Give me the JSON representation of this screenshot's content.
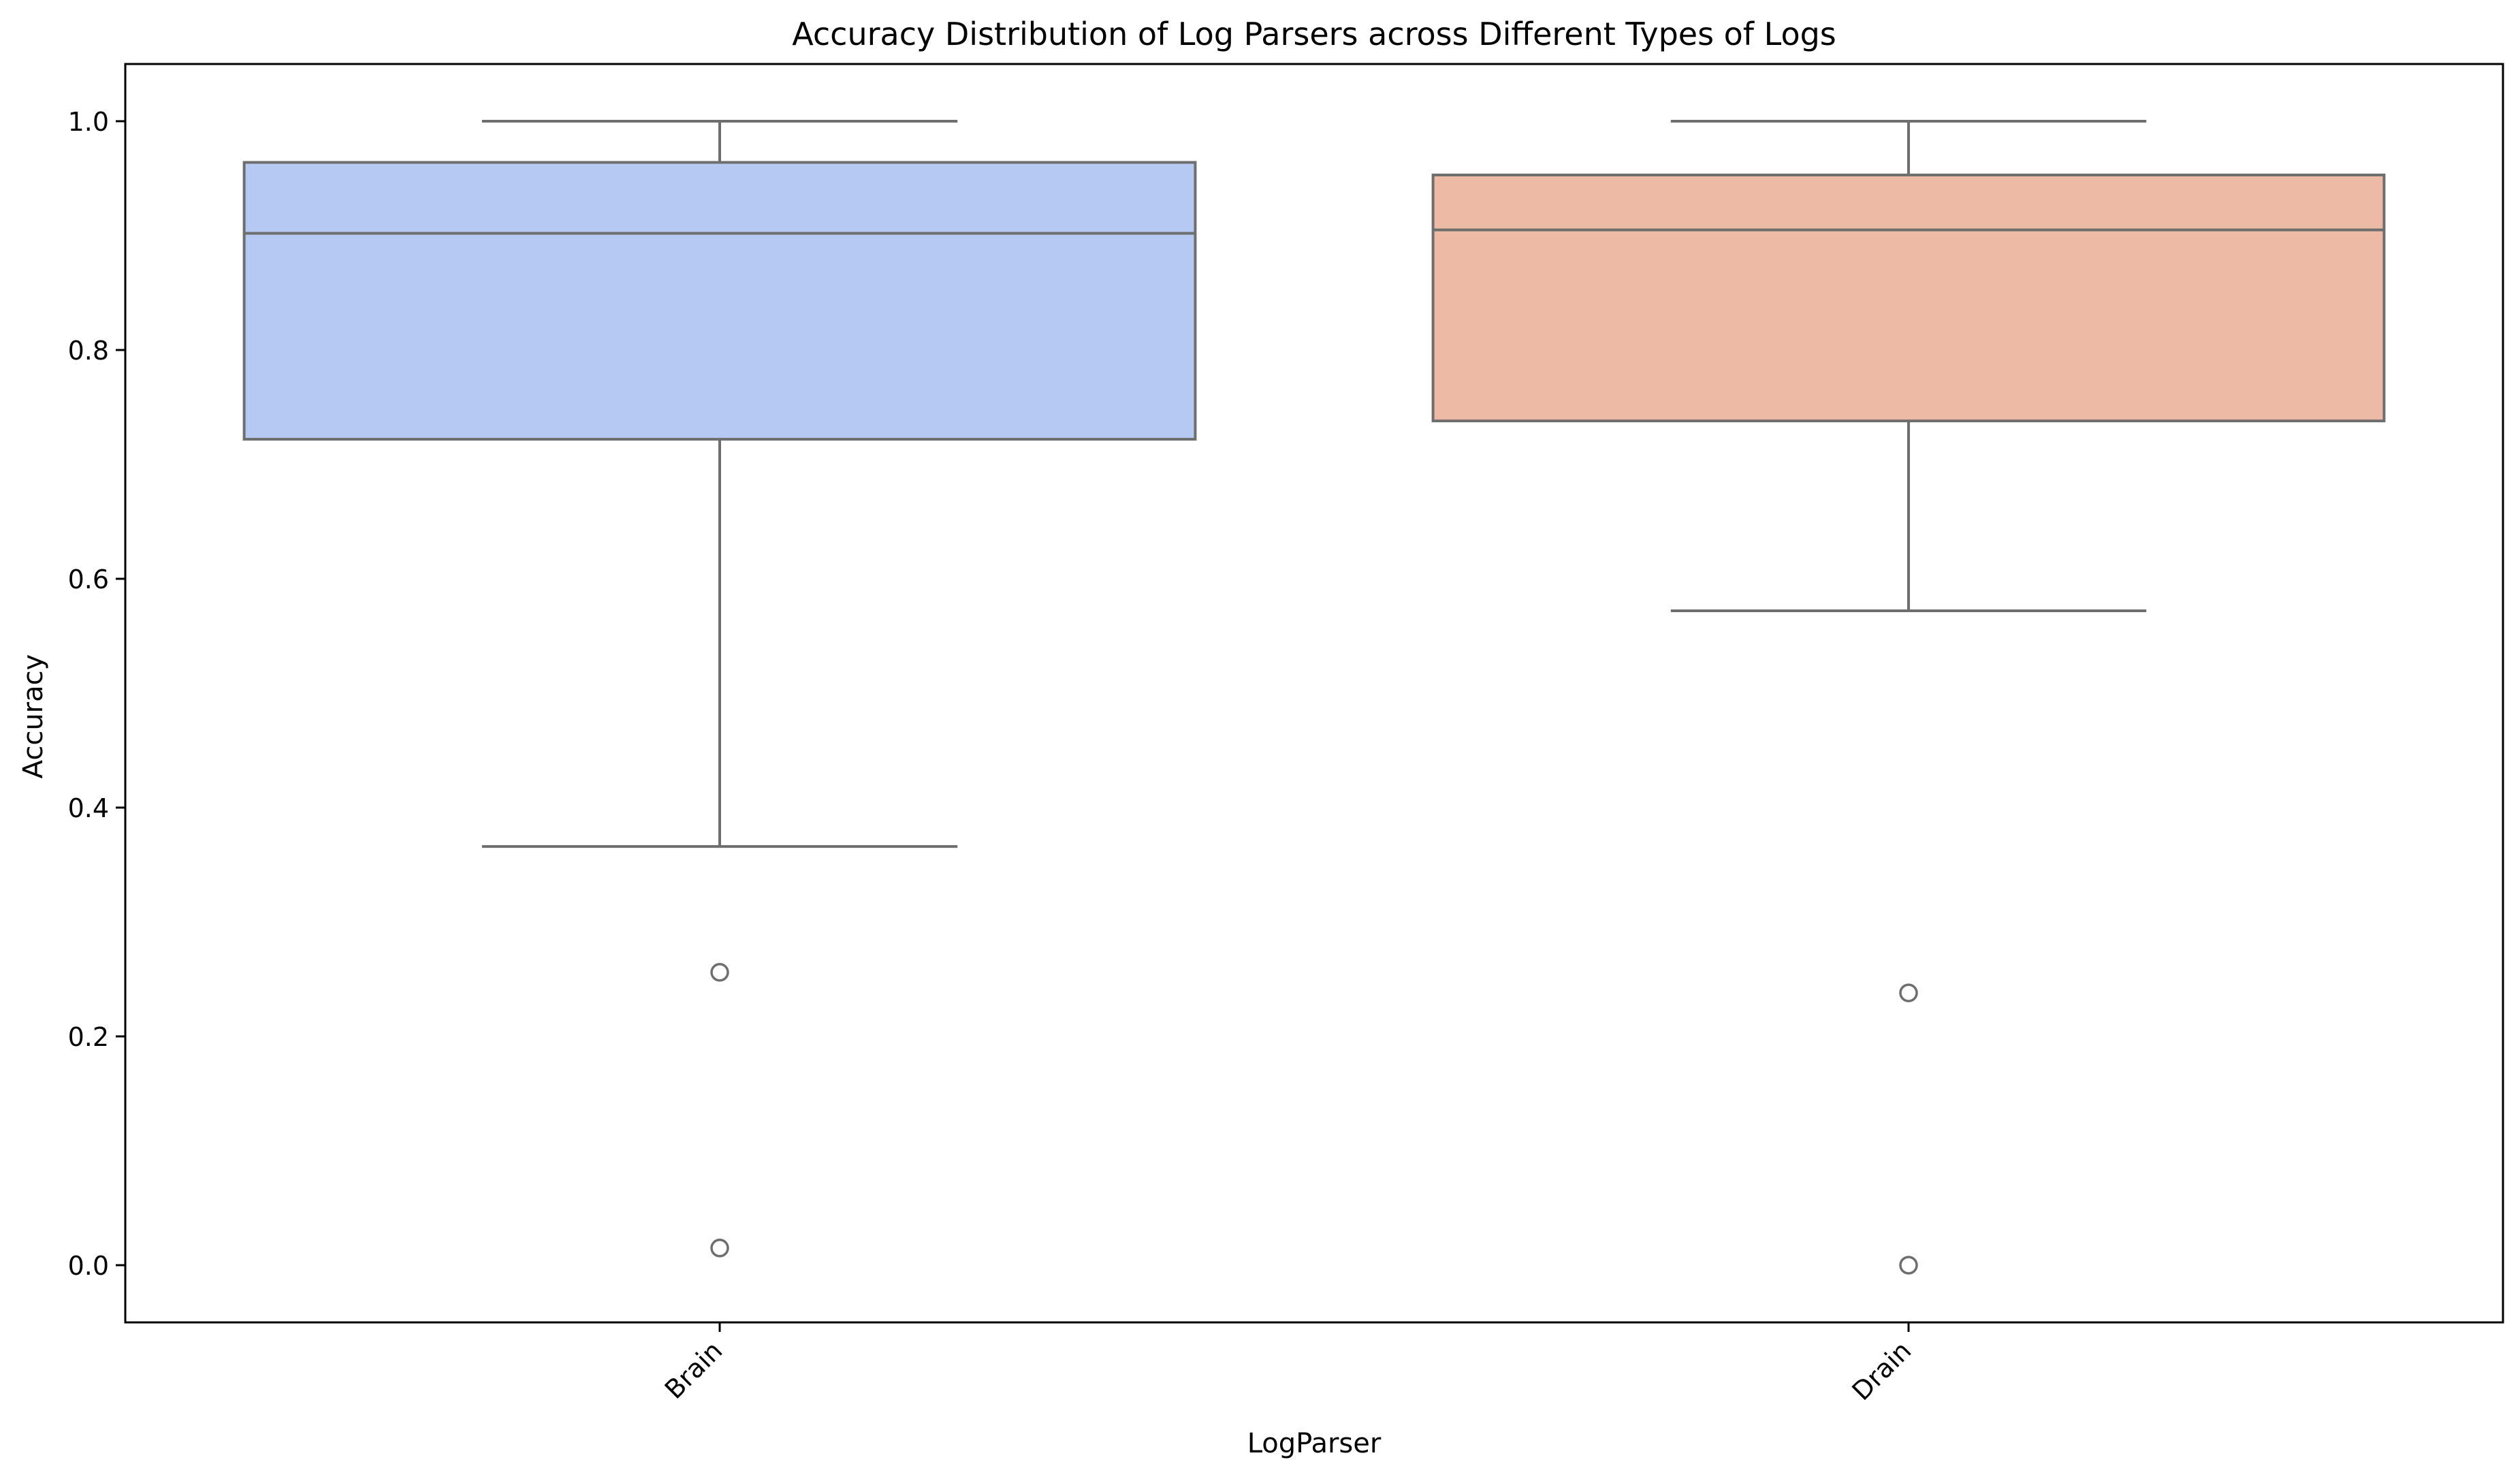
{
  "chart_data": {
    "type": "box",
    "title": "Accuracy Distribution of Log Parsers across Different Types of Logs",
    "xlabel": "LogParser",
    "ylabel": "Accuracy",
    "ylim": [
      -0.05,
      1.05
    ],
    "yticks": [
      "0.0",
      "0.2",
      "0.4",
      "0.6",
      "0.8",
      "1.0"
    ],
    "ytick_values": [
      0.0,
      0.2,
      0.4,
      0.6,
      0.8,
      1.0
    ],
    "grid": false,
    "legend": "none",
    "categories": [
      "Brain",
      "Drain"
    ],
    "boxes": [
      {
        "category": "Brain",
        "whisker_low": 0.366,
        "q1": 0.722,
        "median": 0.902,
        "q3": 0.964,
        "whisker_high": 1.0,
        "outliers": [
          0.256,
          0.015
        ],
        "color": "#b5c9f2"
      },
      {
        "category": "Drain",
        "whisker_low": 0.572,
        "q1": 0.738,
        "median": 0.905,
        "q3": 0.953,
        "whisker_high": 1.0,
        "outliers": [
          0.238,
          0.0
        ],
        "color": "#ecbaa5"
      }
    ],
    "line_color": "#6e6e6e"
  }
}
